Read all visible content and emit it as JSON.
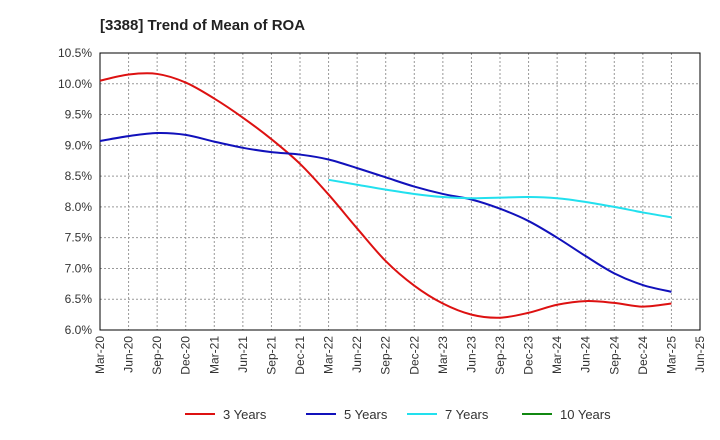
{
  "chart_data": {
    "type": "line",
    "title": "[3388]  Trend of Mean of ROA",
    "xlabel": "",
    "ylabel": "",
    "categories": [
      "Mar-20",
      "Jun-20",
      "Sep-20",
      "Dec-20",
      "Mar-21",
      "Jun-21",
      "Sep-21",
      "Dec-21",
      "Mar-22",
      "Jun-22",
      "Sep-22",
      "Dec-22",
      "Mar-23",
      "Jun-23",
      "Sep-23",
      "Dec-23",
      "Mar-24",
      "Jun-24",
      "Sep-24",
      "Dec-24",
      "Mar-25",
      "Jun-25"
    ],
    "y_ticks": [
      "6.0%",
      "6.5%",
      "7.0%",
      "7.5%",
      "8.0%",
      "8.5%",
      "9.0%",
      "9.5%",
      "10.0%",
      "10.5%"
    ],
    "ylim": [
      6.0,
      10.5
    ],
    "grid": true,
    "legend_position": "bottom",
    "series": [
      {
        "name": "3 Years",
        "color": "#dd1111",
        "values": [
          10.05,
          10.15,
          10.16,
          10.02,
          9.76,
          9.45,
          9.1,
          8.7,
          8.2,
          7.65,
          7.12,
          6.72,
          6.43,
          6.25,
          6.2,
          6.28,
          6.41,
          6.47,
          6.44,
          6.38,
          6.43,
          null
        ]
      },
      {
        "name": "5 Years",
        "color": "#1111bb",
        "values": [
          9.07,
          9.15,
          9.2,
          9.17,
          9.06,
          8.96,
          8.89,
          8.85,
          8.77,
          8.63,
          8.48,
          8.33,
          8.21,
          8.12,
          7.97,
          7.77,
          7.5,
          7.2,
          6.92,
          6.73,
          6.62,
          null
        ]
      },
      {
        "name": "7 Years",
        "color": "#22e0ee",
        "values": [
          null,
          null,
          null,
          null,
          null,
          null,
          null,
          null,
          8.44,
          8.36,
          8.28,
          8.21,
          8.16,
          8.14,
          8.15,
          8.16,
          8.14,
          8.08,
          8.0,
          7.91,
          7.83,
          null
        ]
      },
      {
        "name": "10 Years",
        "color": "#118811",
        "values": [
          null,
          null,
          null,
          null,
          null,
          null,
          null,
          null,
          null,
          null,
          null,
          null,
          null,
          null,
          null,
          null,
          null,
          null,
          null,
          null,
          null,
          null
        ]
      }
    ]
  }
}
